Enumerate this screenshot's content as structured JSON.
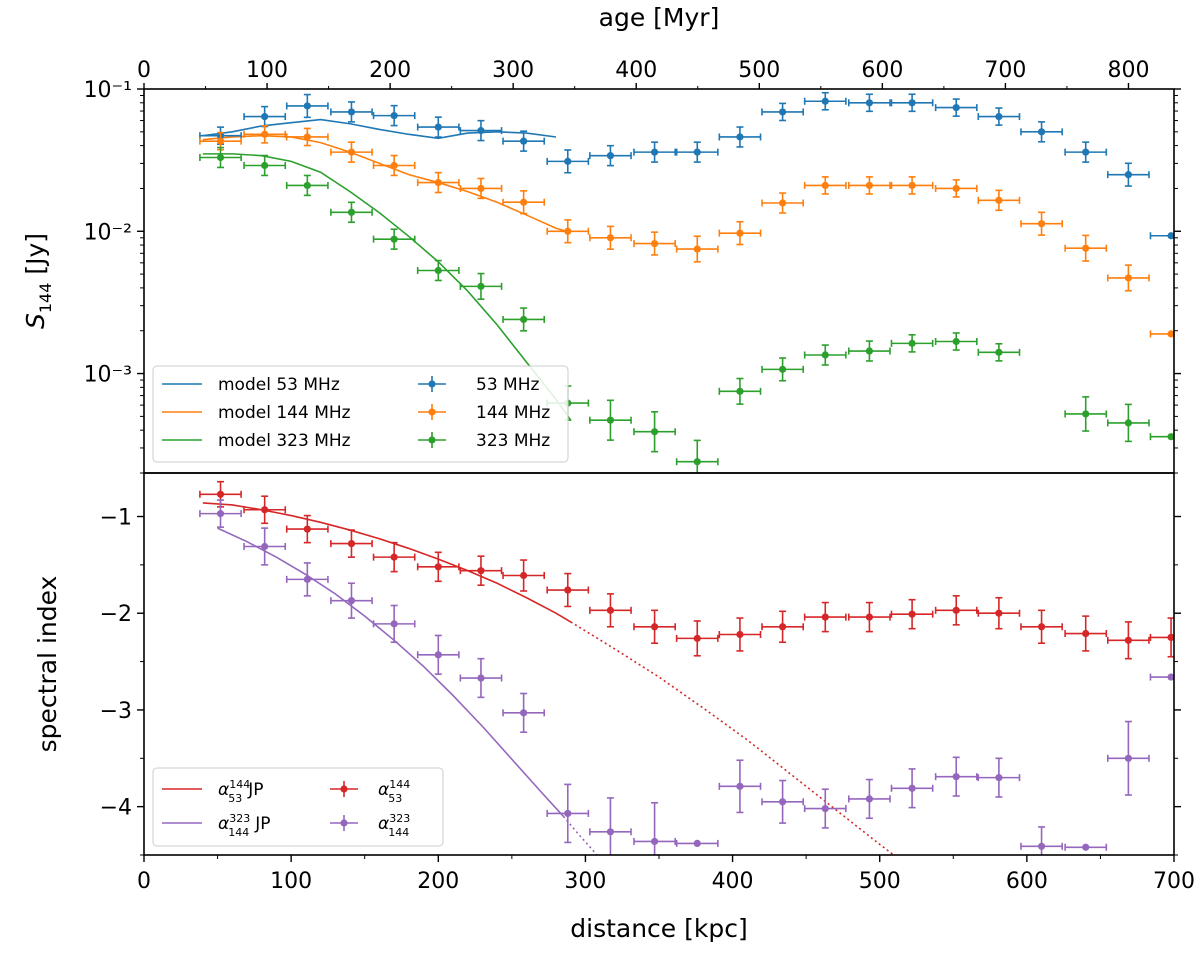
{
  "chart_data": [
    {
      "type": "scatter",
      "panel": "top",
      "title": "",
      "top_axis_label": "age [Myr]",
      "top_axis_ticks": [
        "0",
        "100",
        "200",
        "300",
        "400",
        "500",
        "600",
        "700",
        "800"
      ],
      "top_axis_tick_values": [
        0,
        100,
        200,
        300,
        400,
        500,
        600,
        700,
        800
      ],
      "ylabel": "S144 [Jy]",
      "yscale": "log",
      "ylim": [
        0.0002,
        0.1
      ],
      "y_tick_labels": [
        "10⁻¹",
        "10⁻²",
        "10⁻³"
      ],
      "y_tick_values": [
        0.1,
        0.01,
        0.001
      ],
      "legend": {
        "position": "lower-left",
        "entries": [
          "model 53 MHz",
          "model 144 MHz",
          "model 323 MHz",
          "53 MHz",
          "144 MHz",
          "323 MHz"
        ]
      },
      "series": [
        {
          "name": "53 MHz",
          "color": "#1f77b4",
          "kind": "errorbar",
          "x": [
            52,
            82,
            111,
            141,
            170,
            200,
            229,
            258,
            288,
            317,
            347,
            376,
            405,
            434,
            463,
            493,
            522,
            552,
            581,
            610,
            640,
            669,
            698
          ],
          "y": [
            0.047,
            0.064,
            0.076,
            0.069,
            0.065,
            0.054,
            0.051,
            0.043,
            0.031,
            0.034,
            0.036,
            0.036,
            0.046,
            0.069,
            0.082,
            0.08,
            0.08,
            0.074,
            0.064,
            0.05,
            0.036,
            0.025,
            0.0093
          ],
          "xerr": 14,
          "yerr": [
            0.06,
            0.07,
            0.08,
            0.07,
            0.07,
            0.07,
            0.07,
            0.07,
            0.08,
            0.07,
            0.07,
            0.07,
            0.07,
            0.06,
            0.06,
            0.06,
            0.06,
            0.06,
            0.06,
            0.07,
            0.07,
            0.08,
            0.0
          ]
        },
        {
          "name": "144 MHz",
          "color": "#ff7f0e",
          "kind": "errorbar",
          "x": [
            52,
            82,
            111,
            141,
            170,
            200,
            229,
            258,
            288,
            317,
            347,
            376,
            405,
            434,
            463,
            493,
            522,
            552,
            581,
            610,
            640,
            669,
            698
          ],
          "y": [
            0.043,
            0.048,
            0.046,
            0.036,
            0.029,
            0.022,
            0.02,
            0.016,
            0.01,
            0.009,
            0.0082,
            0.0075,
            0.0097,
            0.0158,
            0.021,
            0.021,
            0.021,
            0.02,
            0.0165,
            0.0113,
            0.0076,
            0.0047,
            0.0019
          ],
          "xerr": 14,
          "yerr": [
            0.06,
            0.06,
            0.06,
            0.07,
            0.07,
            0.07,
            0.07,
            0.08,
            0.08,
            0.08,
            0.08,
            0.09,
            0.08,
            0.07,
            0.06,
            0.06,
            0.06,
            0.06,
            0.07,
            0.08,
            0.09,
            0.09,
            0.0
          ]
        },
        {
          "name": "323 MHz",
          "color": "#2ca02c",
          "kind": "errorbar",
          "x": [
            52,
            82,
            111,
            141,
            170,
            200,
            229,
            258,
            288,
            317,
            347,
            376,
            405,
            434,
            463,
            493,
            522,
            552,
            581,
            610,
            640,
            669,
            698
          ],
          "y": [
            0.033,
            0.029,
            0.021,
            0.0136,
            0.0088,
            0.0053,
            0.0041,
            0.0024,
            0.00062,
            0.00047,
            0.00039,
            0.00024,
            0.00075,
            0.00107,
            0.00135,
            0.00144,
            0.00163,
            0.00168,
            0.00141,
            null,
            0.00052,
            0.00045,
            0.00036
          ],
          "xerr": 14,
          "yerr": [
            0.07,
            0.07,
            0.07,
            0.07,
            0.07,
            0.07,
            0.09,
            0.08,
            0.12,
            0.14,
            0.14,
            0.15,
            0.09,
            0.08,
            0.07,
            0.07,
            0.06,
            0.06,
            0.06,
            0.0,
            0.12,
            0.13,
            0.0
          ]
        },
        {
          "name": "model 53 MHz",
          "color": "#1f77b4",
          "kind": "line",
          "x": [
            40,
            60,
            80,
            100,
            120,
            140,
            160,
            180,
            200,
            220,
            240,
            260,
            280
          ],
          "y": [
            0.047,
            0.05,
            0.055,
            0.058,
            0.061,
            0.057,
            0.052,
            0.048,
            0.045,
            0.049,
            0.05,
            0.049,
            0.046
          ]
        },
        {
          "name": "model 144 MHz",
          "color": "#ff7f0e",
          "kind": "line",
          "x": [
            40,
            60,
            80,
            100,
            120,
            140,
            160,
            180,
            200,
            220,
            240,
            260,
            280,
            290
          ],
          "y": [
            0.044,
            0.046,
            0.047,
            0.046,
            0.042,
            0.036,
            0.03,
            0.025,
            0.022,
            0.019,
            0.016,
            0.013,
            0.0105,
            0.0098
          ]
        },
        {
          "name": "model 323 MHz",
          "color": "#2ca02c",
          "kind": "line",
          "x": [
            40,
            60,
            80,
            100,
            120,
            140,
            160,
            180,
            200,
            220,
            240,
            260,
            280,
            290
          ],
          "y": [
            0.035,
            0.035,
            0.034,
            0.031,
            0.026,
            0.019,
            0.0135,
            0.0092,
            0.0061,
            0.0038,
            0.0022,
            0.0012,
            0.00066,
            0.00047
          ]
        }
      ]
    },
    {
      "type": "scatter",
      "panel": "bottom",
      "xlabel": "distance [kpc]",
      "ylabel": "spectral index",
      "xlim": [
        0,
        700
      ],
      "x_tick_labels": [
        "0",
        "100",
        "200",
        "300",
        "400",
        "500",
        "600",
        "700"
      ],
      "x_tick_values": [
        0,
        100,
        200,
        300,
        400,
        500,
        600,
        700
      ],
      "ylim": [
        -4.5,
        -0.55
      ],
      "y_tick_labels": [
        "−1",
        "−2",
        "−3",
        "−4"
      ],
      "y_tick_values": [
        -1,
        -2,
        -3,
        -4
      ],
      "legend": {
        "position": "lower-left",
        "entries": [
          "α JP",
          "α JP",
          "α",
          "α"
        ],
        "superscripts": [
          "144",
          "323",
          "144",
          "323"
        ],
        "subscripts": [
          "53",
          "144",
          "53",
          "144"
        ]
      },
      "series": [
        {
          "name": "alpha 53-144",
          "color": "#d62728",
          "kind": "errorbar",
          "x": [
            52,
            82,
            111,
            141,
            170,
            200,
            229,
            258,
            288,
            317,
            347,
            376,
            405,
            434,
            463,
            493,
            522,
            552,
            581,
            610,
            640,
            669,
            698
          ],
          "y": [
            -0.77,
            -0.93,
            -1.13,
            -1.28,
            -1.42,
            -1.52,
            -1.56,
            -1.61,
            -1.76,
            -1.97,
            -2.14,
            -2.26,
            -2.22,
            -2.14,
            -2.04,
            -2.04,
            -2.01,
            -1.97,
            -2.0,
            -2.14,
            -2.21,
            -2.28,
            -2.25
          ],
          "xerr": 14,
          "yerr": [
            0.13,
            0.14,
            0.14,
            0.14,
            0.15,
            0.15,
            0.15,
            0.16,
            0.17,
            0.17,
            0.17,
            0.18,
            0.17,
            0.16,
            0.15,
            0.15,
            0.15,
            0.15,
            0.16,
            0.17,
            0.18,
            0.19,
            0.2
          ]
        },
        {
          "name": "alpha 144-323",
          "color": "#9467bd",
          "kind": "errorbar",
          "x": [
            52,
            82,
            111,
            141,
            170,
            200,
            229,
            258,
            288,
            317,
            347,
            376,
            405,
            434,
            463,
            493,
            522,
            552,
            581,
            610,
            640,
            669,
            698
          ],
          "y": [
            -0.97,
            -1.31,
            -1.65,
            -1.87,
            -2.11,
            -2.43,
            -2.67,
            -3.03,
            -4.07,
            -4.26,
            -4.36,
            -4.38,
            -3.79,
            -3.95,
            -4.02,
            -3.92,
            -3.81,
            -3.69,
            -3.7,
            -4.41,
            -4.42,
            -3.5,
            -2.66
          ],
          "xerr": 14,
          "yerr": [
            0.14,
            0.19,
            0.17,
            0.18,
            0.19,
            0.2,
            0.2,
            0.2,
            0.3,
            0.35,
            0.4,
            0.0,
            0.27,
            0.22,
            0.2,
            0.2,
            0.2,
            0.2,
            0.2,
            0.2,
            0.0,
            0.38,
            0.0
          ]
        },
        {
          "name": "alpha 53-144 JP",
          "color": "#d62728",
          "kind": "line",
          "x_solid": [
            40,
            60,
            80,
            100,
            120,
            140,
            160,
            180,
            200,
            220,
            240,
            260,
            280,
            290
          ],
          "y_solid": [
            -0.86,
            -0.88,
            -0.93,
            -0.99,
            -1.06,
            -1.14,
            -1.23,
            -1.33,
            -1.44,
            -1.56,
            -1.69,
            -1.84,
            -2.0,
            -2.09
          ],
          "x_dotted": [
            290,
            320,
            350,
            380,
            410,
            440,
            470,
            500,
            520
          ],
          "y_dotted": [
            -2.09,
            -2.37,
            -2.66,
            -2.98,
            -3.31,
            -3.67,
            -4.03,
            -4.39,
            -4.62
          ]
        },
        {
          "name": "alpha 144-323 JP",
          "color": "#9467bd",
          "kind": "line",
          "x_solid": [
            50,
            70,
            90,
            110,
            130,
            150,
            170,
            190,
            210,
            230,
            250,
            270,
            285
          ],
          "y_solid": [
            -1.12,
            -1.26,
            -1.42,
            -1.6,
            -1.8,
            -2.03,
            -2.28,
            -2.55,
            -2.85,
            -3.17,
            -3.51,
            -3.85,
            -4.1
          ],
          "x_dotted": [
            285,
            295,
            305,
            315,
            322
          ],
          "y_dotted": [
            -4.1,
            -4.28,
            -4.45,
            -4.63,
            -4.75
          ]
        }
      ]
    }
  ]
}
